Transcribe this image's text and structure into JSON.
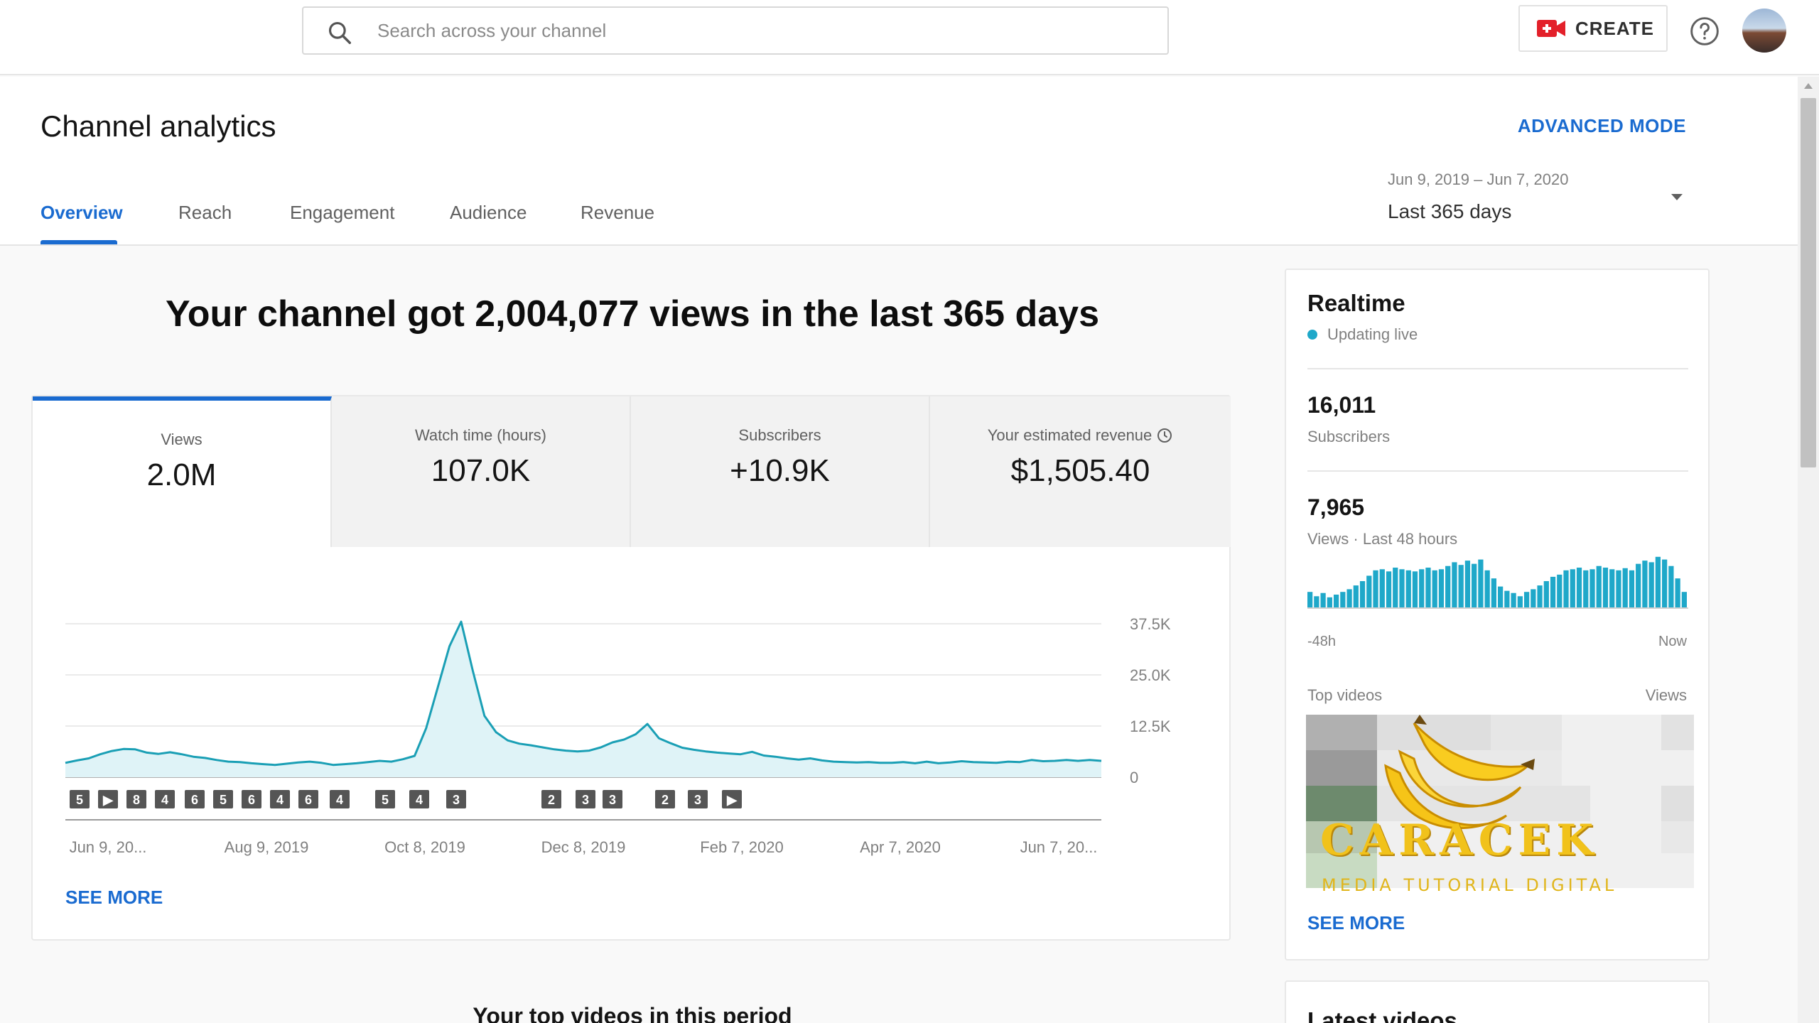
{
  "search": {
    "placeholder": "Search across your channel"
  },
  "topbar": {
    "create_label": "CREATE"
  },
  "header": {
    "title": "Channel analytics",
    "advanced_mode": "ADVANCED MODE",
    "tabs": [
      "Overview",
      "Reach",
      "Engagement",
      "Audience",
      "Revenue"
    ],
    "active_tab": "Overview",
    "date_range": "Jun 9, 2019 – Jun 7, 2020",
    "date_label": "Last 365 days"
  },
  "summary": {
    "headline": "Your channel got 2,004,077 views in the last 365 days"
  },
  "metrics": [
    {
      "label": "Views",
      "value": "2.0M"
    },
    {
      "label": "Watch time (hours)",
      "value": "107.0K"
    },
    {
      "label": "Subscribers",
      "value": "+10.9K"
    },
    {
      "label": "Your estimated revenue",
      "value": "$1,505.40"
    }
  ],
  "chart_data": {
    "type": "area",
    "title": "",
    "xlabel": "",
    "ylabel": "",
    "y_ticks": [
      "37.5K",
      "25.0K",
      "12.5K",
      "0"
    ],
    "ylim": [
      0,
      37500
    ],
    "x_ticks": [
      "Jun 9, 20...",
      "Aug 9, 2019",
      "Oct 8, 2019",
      "Dec 8, 2019",
      "Feb 7, 2020",
      "Apr 7, 2020",
      "Jun 7, 20..."
    ],
    "grid": true,
    "color": "#1a9fb5",
    "fill": "#dff3f7",
    "series": [
      {
        "values": [
          3500,
          4100,
          4600,
          5600,
          6400,
          6900,
          6800,
          6000,
          5700,
          6100,
          5600,
          5000,
          4700,
          4200,
          3800,
          3700,
          3400,
          3200,
          3000,
          3300,
          3600,
          3800,
          3500,
          3000,
          3200,
          3400,
          3700,
          4000,
          3800,
          4400,
          5200,
          12000,
          22000,
          32000,
          38000,
          26000,
          15000,
          11000,
          9000,
          8200,
          7800,
          7300,
          6800,
          6500,
          6300,
          6500,
          7300,
          8500,
          9200,
          10500,
          13000,
          9500,
          8300,
          7200,
          6700,
          6300,
          6000,
          5800,
          5600,
          6200,
          5300,
          5000,
          4600,
          4300,
          4600,
          4100,
          3800,
          3700,
          3600,
          3700,
          3500,
          3500,
          3700,
          3400,
          3800,
          3400,
          3600,
          3900,
          3700,
          3600,
          3500,
          3800,
          3700,
          4200,
          3900,
          4000,
          4200,
          4000,
          4200,
          4000
        ]
      }
    ],
    "annotations": [
      "5",
      "▶",
      "8",
      "4",
      "6",
      "5",
      "6",
      "4",
      "6",
      "4",
      "5",
      "4",
      "3",
      "2",
      "3",
      "3",
      "2",
      "3",
      "▶"
    ]
  },
  "card": {
    "see_more": "SEE MORE"
  },
  "top_videos_title": "Your top videos in this period",
  "realtime": {
    "title": "Realtime",
    "status": "Updating live",
    "subscribers_value": "16,011",
    "subscribers_label": "Subscribers",
    "views_value": "7,965",
    "views_label": "Views · Last 48 hours",
    "range_start": "-48h",
    "range_end": "Now",
    "top_videos_label": "Top videos",
    "views_col_label": "Views",
    "see_more": "SEE MORE",
    "bars": [
      0.3,
      0.22,
      0.28,
      0.2,
      0.25,
      0.3,
      0.35,
      0.42,
      0.5,
      0.6,
      0.7,
      0.72,
      0.68,
      0.75,
      0.72,
      0.7,
      0.68,
      0.72,
      0.75,
      0.7,
      0.72,
      0.78,
      0.85,
      0.8,
      0.88,
      0.82,
      0.9,
      0.7,
      0.55,
      0.4,
      0.32,
      0.28,
      0.22,
      0.3,
      0.35,
      0.42,
      0.5,
      0.58,
      0.62,
      0.7,
      0.72,
      0.75,
      0.7,
      0.72,
      0.78,
      0.75,
      0.72,
      0.7,
      0.74,
      0.7,
      0.82,
      0.88,
      0.85,
      0.95,
      0.9,
      0.78,
      0.55,
      0.3
    ]
  },
  "watermark": {
    "text": "CARACEK",
    "subtitle": "MEDIA TUTORIAL DIGITAL"
  },
  "latest": {
    "title": "Latest videos"
  }
}
